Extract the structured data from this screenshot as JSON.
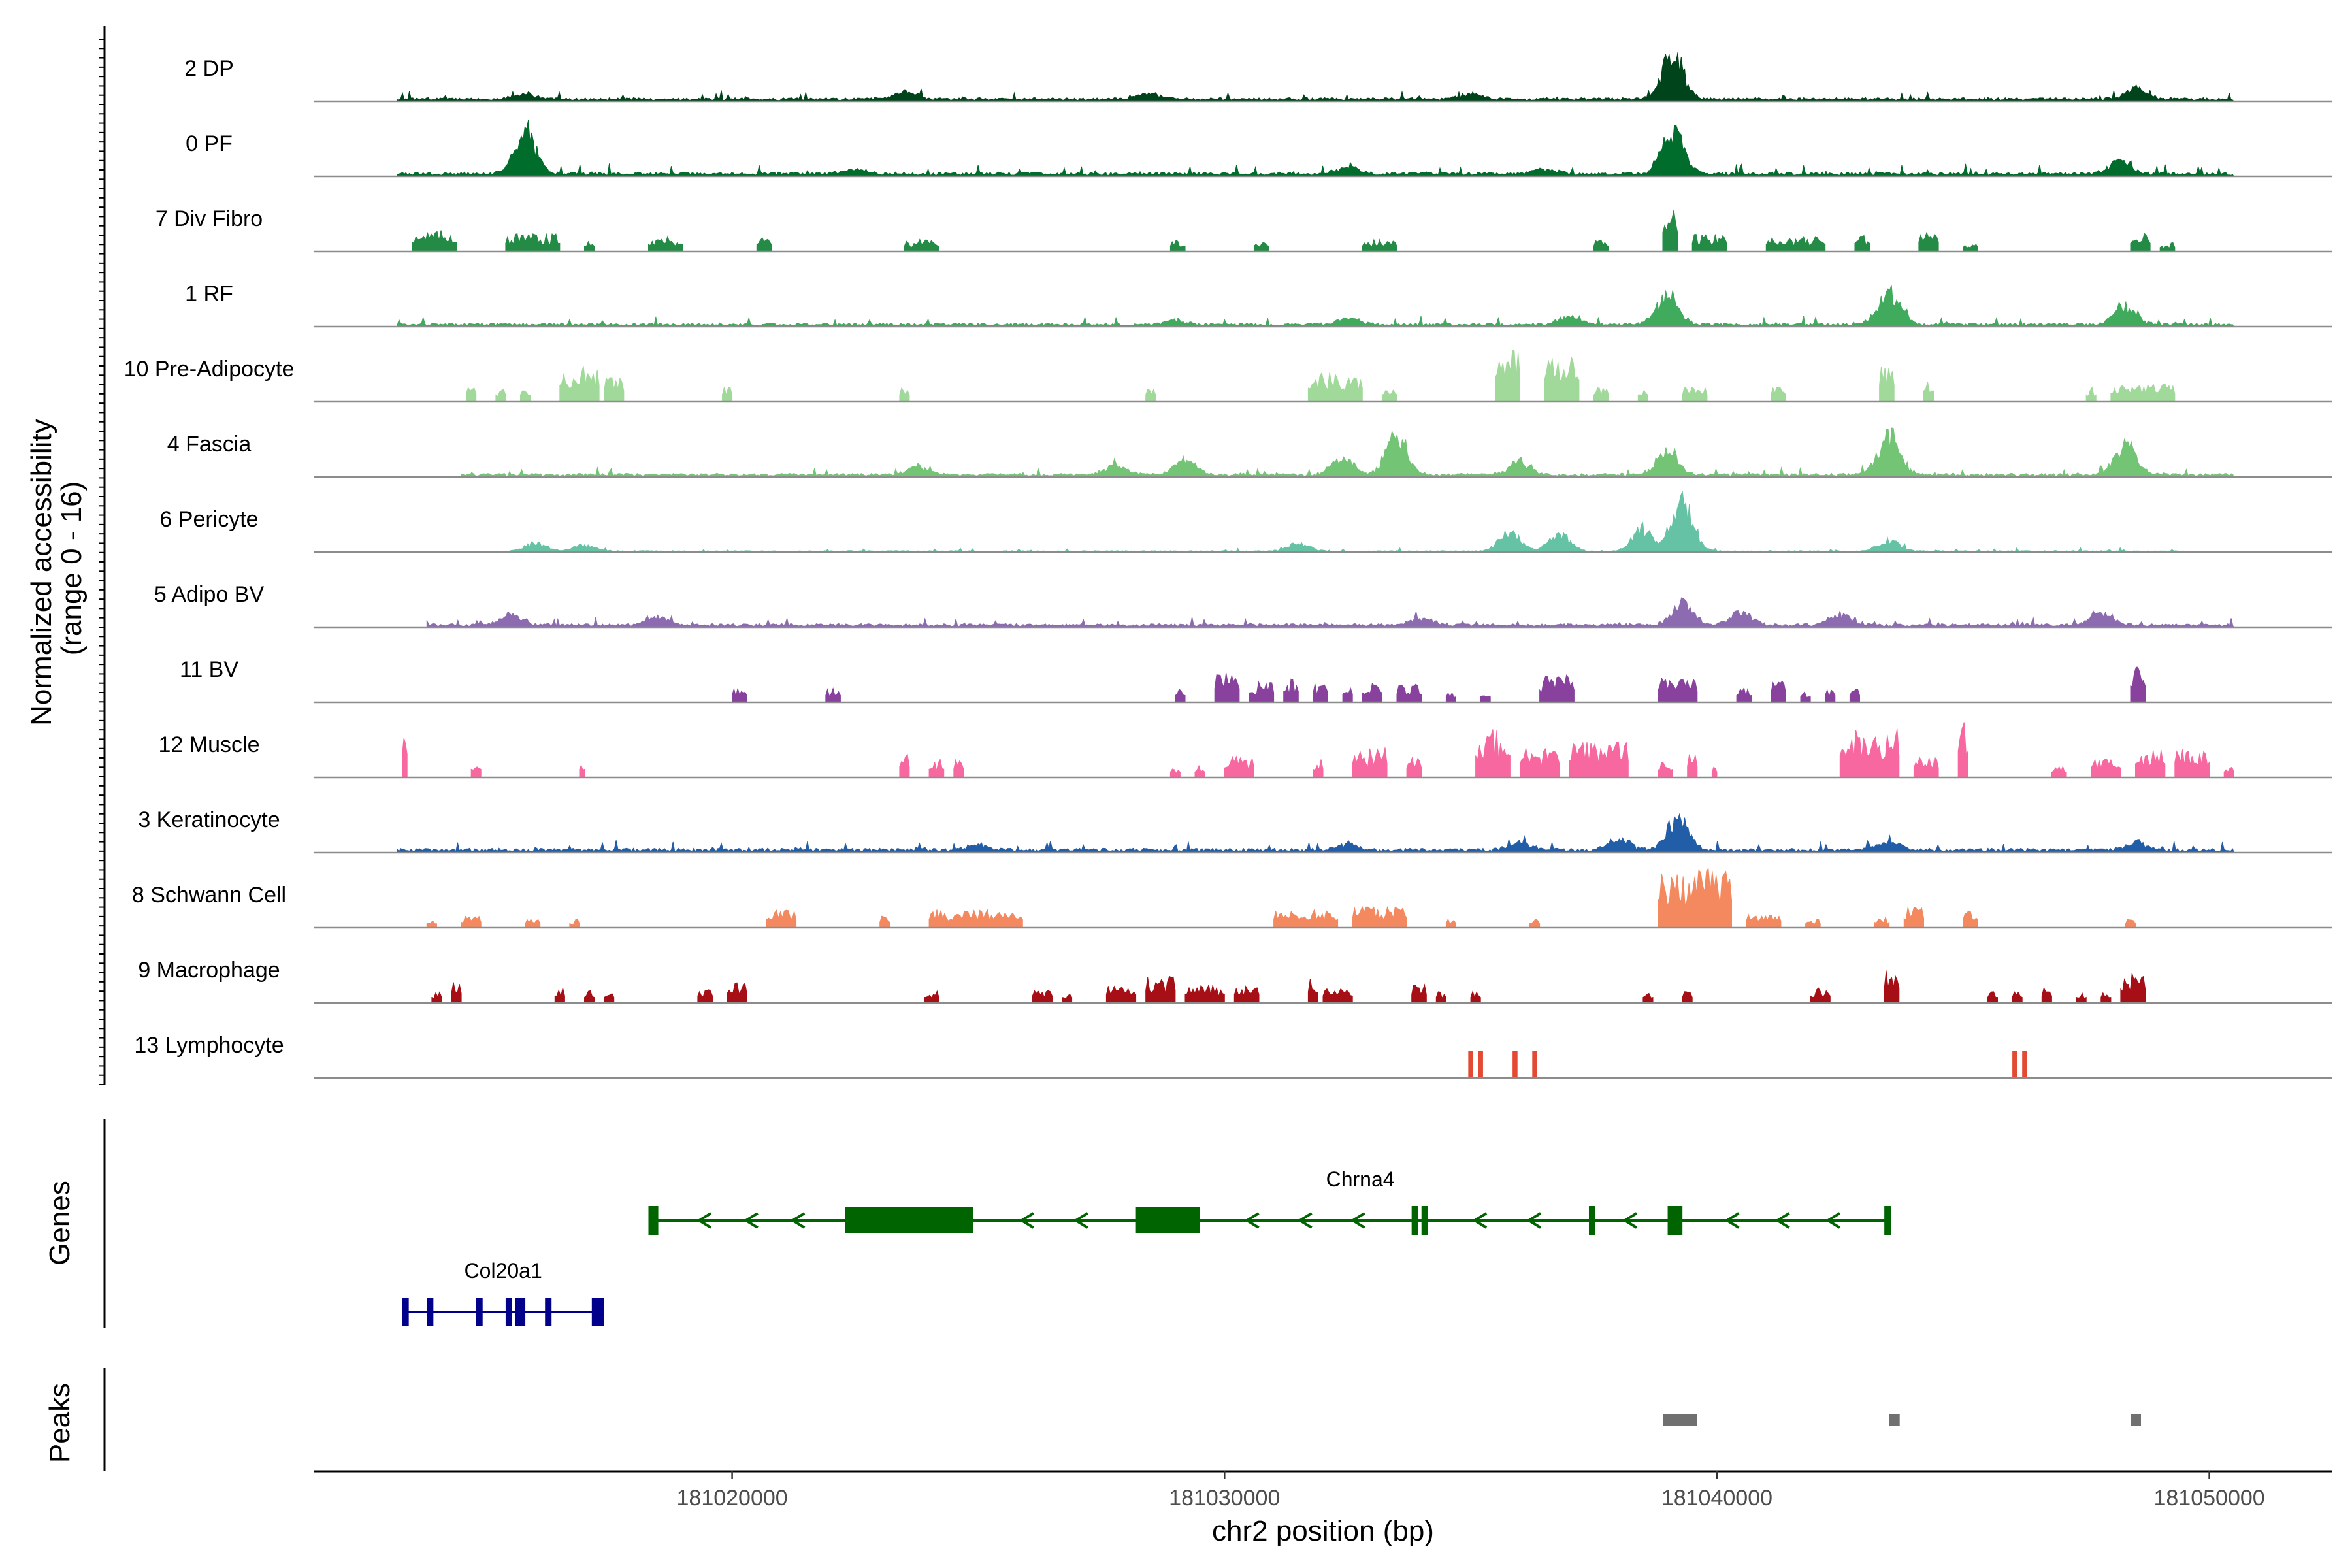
{
  "chart_data": {
    "type": "area",
    "title": "",
    "ylabel_line1": "Normalized accessibility",
    "ylabel_line2": "(range 0 - 16)",
    "xlabel": "chr2 position (bp)",
    "xlim": [
      181011500,
      181052500
    ],
    "ylim": [
      0,
      16
    ],
    "x_ticks": [
      181020000,
      181030000,
      181040000,
      181050000
    ],
    "x_tick_labels": [
      "181020000",
      "181030000",
      "181040000",
      "181050000"
    ],
    "tracks": [
      {
        "name": "2 DP",
        "color": "#00441b",
        "style": "continuous",
        "range": [
          181013200,
          181050500
        ],
        "base": 0.05,
        "peaks": [
          [
            181039100,
            0.85
          ],
          [
            181048500,
            0.2
          ],
          [
            181023500,
            0.15
          ],
          [
            181015800,
            0.1
          ],
          [
            181035000,
            0.1
          ],
          [
            181028500,
            0.1
          ]
        ]
      },
      {
        "name": "0 PF",
        "color": "#006d2c",
        "style": "continuous",
        "range": [
          181013200,
          181050500
        ],
        "base": 0.06,
        "peaks": [
          [
            181015800,
            0.75
          ],
          [
            181039100,
            0.8
          ],
          [
            181048200,
            0.25
          ],
          [
            181032500,
            0.15
          ],
          [
            181022500,
            0.1
          ],
          [
            181036500,
            0.1
          ]
        ]
      },
      {
        "name": "7 Div Fibro",
        "color": "#238b45",
        "style": "sparse",
        "segments": [
          [
            181013500,
            181014400,
            0.35
          ],
          [
            181015400,
            181016500,
            0.3
          ],
          [
            181017000,
            181017200,
            0.2
          ],
          [
            181018300,
            181019000,
            0.25
          ],
          [
            181020500,
            181020800,
            0.25
          ],
          [
            181023500,
            181024200,
            0.2
          ],
          [
            181028900,
            181029200,
            0.2
          ],
          [
            181030600,
            181030900,
            0.2
          ],
          [
            181032800,
            181033500,
            0.2
          ],
          [
            181037500,
            181037800,
            0.2
          ],
          [
            181038900,
            181039200,
            0.7
          ],
          [
            181039500,
            181040200,
            0.3
          ],
          [
            181041000,
            181042200,
            0.25
          ],
          [
            181042800,
            181043100,
            0.3
          ],
          [
            181044100,
            181044500,
            0.35
          ],
          [
            181045000,
            181045300,
            0.15
          ],
          [
            181048400,
            181048800,
            0.3
          ],
          [
            181049000,
            181049300,
            0.15
          ]
        ]
      },
      {
        "name": "1 RF",
        "color": "#41ab5d",
        "style": "continuous",
        "range": [
          181013200,
          181050500
        ],
        "base": 0.05,
        "peaks": [
          [
            181039000,
            0.55
          ],
          [
            181043500,
            0.65
          ],
          [
            181048300,
            0.35
          ],
          [
            181032500,
            0.12
          ],
          [
            181037000,
            0.15
          ],
          [
            181029000,
            0.08
          ]
        ]
      },
      {
        "name": "10 Pre-Adipocyte",
        "color": "#a1d99b",
        "style": "sparse",
        "segments": [
          [
            181014600,
            181014800,
            0.3
          ],
          [
            181015200,
            181015400,
            0.25
          ],
          [
            181015700,
            181015900,
            0.25
          ],
          [
            181016500,
            181017300,
            0.6
          ],
          [
            181017400,
            181017800,
            0.4
          ],
          [
            181019800,
            181020000,
            0.25
          ],
          [
            181023400,
            181023600,
            0.25
          ],
          [
            181028400,
            181028600,
            0.25
          ],
          [
            181031700,
            181032800,
            0.5
          ],
          [
            181033200,
            181033500,
            0.25
          ],
          [
            181035500,
            181036000,
            0.9
          ],
          [
            181036500,
            181037200,
            0.8
          ],
          [
            181037500,
            181037800,
            0.25
          ],
          [
            181038400,
            181038600,
            0.25
          ],
          [
            181039300,
            181039800,
            0.25
          ],
          [
            181041100,
            181041400,
            0.25
          ],
          [
            181043300,
            181043600,
            0.6
          ],
          [
            181044200,
            181044400,
            0.4
          ],
          [
            181047500,
            181047700,
            0.25
          ],
          [
            181048000,
            181049300,
            0.3
          ]
        ]
      },
      {
        "name": "4 Fascia",
        "color": "#74c476",
        "style": "continuous",
        "range": [
          181014500,
          181050500
        ],
        "base": 0.05,
        "peaks": [
          [
            181033500,
            0.75
          ],
          [
            181032400,
            0.35
          ],
          [
            181039000,
            0.4
          ],
          [
            181043500,
            0.75
          ],
          [
            181048300,
            0.6
          ],
          [
            181029200,
            0.3
          ],
          [
            181027800,
            0.2
          ],
          [
            181023800,
            0.15
          ],
          [
            181036000,
            0.25
          ]
        ]
      },
      {
        "name": "6 Pericyte",
        "color": "#66c2a4",
        "style": "continuous",
        "range": [
          181015500,
          181049500
        ],
        "base": 0.02,
        "peaks": [
          [
            181039300,
            0.95
          ],
          [
            181035800,
            0.35
          ],
          [
            181036800,
            0.3
          ],
          [
            181038500,
            0.4
          ],
          [
            181043500,
            0.2
          ],
          [
            181016000,
            0.15
          ],
          [
            181017000,
            0.12
          ],
          [
            181031500,
            0.15
          ]
        ]
      },
      {
        "name": "5 Adipo BV",
        "color": "#8c6bb1",
        "style": "continuous",
        "range": [
          181013800,
          181050500
        ],
        "base": 0.05,
        "peaks": [
          [
            181039300,
            0.4
          ],
          [
            181040500,
            0.25
          ],
          [
            181042500,
            0.2
          ],
          [
            181047800,
            0.25
          ],
          [
            181034000,
            0.15
          ],
          [
            181018500,
            0.15
          ],
          [
            181015500,
            0.2
          ]
        ]
      },
      {
        "name": "11 BV",
        "color": "#88419d",
        "style": "sparse",
        "segments": [
          [
            181020000,
            181020300,
            0.25
          ],
          [
            181021900,
            181022200,
            0.25
          ],
          [
            181029000,
            181029200,
            0.25
          ],
          [
            181029800,
            181030300,
            0.5
          ],
          [
            181030500,
            181031000,
            0.35
          ],
          [
            181031200,
            181031500,
            0.4
          ],
          [
            181031800,
            181032100,
            0.35
          ],
          [
            181032400,
            181032600,
            0.3
          ],
          [
            181032800,
            181033200,
            0.35
          ],
          [
            181033500,
            181034000,
            0.3
          ],
          [
            181034500,
            181034700,
            0.2
          ],
          [
            181035200,
            181035400,
            0.2
          ],
          [
            181036400,
            181037100,
            0.45
          ],
          [
            181038800,
            181039600,
            0.4
          ],
          [
            181040400,
            181040700,
            0.25
          ],
          [
            181041100,
            181041400,
            0.35
          ],
          [
            181041700,
            181041900,
            0.2
          ],
          [
            181042200,
            181042400,
            0.25
          ],
          [
            181042700,
            181042900,
            0.25
          ],
          [
            181048400,
            181048700,
            0.6
          ]
        ]
      },
      {
        "name": "12 Muscle",
        "color": "#f768a1",
        "style": "sparse",
        "segments": [
          [
            181013300,
            181013400,
            0.85
          ],
          [
            181014700,
            181014900,
            0.3
          ],
          [
            181016900,
            181017000,
            0.3
          ],
          [
            181023400,
            181023600,
            0.4
          ],
          [
            181024000,
            181024300,
            0.3
          ],
          [
            181024500,
            181024700,
            0.3
          ],
          [
            181028900,
            181029100,
            0.2
          ],
          [
            181029400,
            181029600,
            0.2
          ],
          [
            181030000,
            181030600,
            0.35
          ],
          [
            181031800,
            181032000,
            0.3
          ],
          [
            181032600,
            181033300,
            0.5
          ],
          [
            181033700,
            181034000,
            0.35
          ],
          [
            181035100,
            181035800,
            0.8
          ],
          [
            181036000,
            181036800,
            0.5
          ],
          [
            181037000,
            181038200,
            0.6
          ],
          [
            181038800,
            181039100,
            0.3
          ],
          [
            181039400,
            181039600,
            0.4
          ],
          [
            181039900,
            181040000,
            0.2
          ],
          [
            181042500,
            181043700,
            0.8
          ],
          [
            181044000,
            181044500,
            0.35
          ],
          [
            181044900,
            181045100,
            0.95
          ],
          [
            181046800,
            181047100,
            0.2
          ],
          [
            181047600,
            181048200,
            0.35
          ],
          [
            181048500,
            181049100,
            0.5
          ],
          [
            181049300,
            181050000,
            0.55
          ],
          [
            181050300,
            181050500,
            0.2
          ]
        ]
      },
      {
        "name": "3 Keratinocyte",
        "color": "#225ea8",
        "style": "continuous",
        "range": [
          181013200,
          181050500
        ],
        "base": 0.06,
        "peaks": [
          [
            181039200,
            0.6
          ],
          [
            181038000,
            0.2
          ],
          [
            181036000,
            0.15
          ],
          [
            181043500,
            0.15
          ],
          [
            181032500,
            0.12
          ],
          [
            181025000,
            0.1
          ],
          [
            181048500,
            0.15
          ]
        ]
      },
      {
        "name": "8 Schwann Cell",
        "color": "#f4895f",
        "style": "sparse",
        "segments": [
          [
            181013800,
            181014000,
            0.15
          ],
          [
            181014500,
            181014900,
            0.2
          ],
          [
            181015800,
            181016100,
            0.15
          ],
          [
            181016700,
            181016900,
            0.15
          ],
          [
            181020700,
            181021300,
            0.3
          ],
          [
            181023000,
            181023200,
            0.2
          ],
          [
            181024000,
            181025900,
            0.3
          ],
          [
            181031000,
            181032300,
            0.3
          ],
          [
            181032600,
            181033700,
            0.35
          ],
          [
            181034500,
            181034700,
            0.15
          ],
          [
            181036200,
            181036400,
            0.15
          ],
          [
            181038800,
            181040300,
            1.0
          ],
          [
            181040600,
            181041300,
            0.25
          ],
          [
            181041800,
            181042100,
            0.15
          ],
          [
            181043200,
            181043500,
            0.2
          ],
          [
            181043800,
            181044200,
            0.35
          ],
          [
            181045000,
            181045300,
            0.3
          ],
          [
            181048300,
            181048500,
            0.15
          ]
        ]
      },
      {
        "name": "9 Macrophage",
        "color": "#a50f15",
        "style": "sparse",
        "segments": [
          [
            181013900,
            181014100,
            0.2
          ],
          [
            181014300,
            181014500,
            0.35
          ],
          [
            181016400,
            181016600,
            0.25
          ],
          [
            181017000,
            181017200,
            0.2
          ],
          [
            181017400,
            181017600,
            0.2
          ],
          [
            181019300,
            181019600,
            0.25
          ],
          [
            181019900,
            181020300,
            0.35
          ],
          [
            181023900,
            181024200,
            0.2
          ],
          [
            181026100,
            181026500,
            0.25
          ],
          [
            181026700,
            181026900,
            0.2
          ],
          [
            181027600,
            181028200,
            0.3
          ],
          [
            181028400,
            181029000,
            0.45
          ],
          [
            181029200,
            181030000,
            0.3
          ],
          [
            181030200,
            181030700,
            0.3
          ],
          [
            181031700,
            181031900,
            0.4
          ],
          [
            181032000,
            181032600,
            0.25
          ],
          [
            181033800,
            181034100,
            0.3
          ],
          [
            181034300,
            181034500,
            0.2
          ],
          [
            181035000,
            181035200,
            0.2
          ],
          [
            181038500,
            181038700,
            0.2
          ],
          [
            181039300,
            181039500,
            0.2
          ],
          [
            181041900,
            181042300,
            0.25
          ],
          [
            181043400,
            181043700,
            0.55
          ],
          [
            181045500,
            181045700,
            0.2
          ],
          [
            181046000,
            181046200,
            0.2
          ],
          [
            181046600,
            181046800,
            0.25
          ],
          [
            181047300,
            181047500,
            0.2
          ],
          [
            181047800,
            181048000,
            0.2
          ],
          [
            181048200,
            181048700,
            0.5
          ]
        ]
      },
      {
        "name": "13 Lymphocyte",
        "color": "#e34a33",
        "style": "bars",
        "segments": [
          [
            181034950,
            181035050,
            0.45
          ],
          [
            181035150,
            181035250,
            0.45
          ],
          [
            181035850,
            181035950,
            0.45
          ],
          [
            181036250,
            181036350,
            0.45
          ],
          [
            181046000,
            181046100,
            0.45
          ],
          [
            181046200,
            181046300,
            0.45
          ]
        ]
      }
    ],
    "genes_label": "Genes",
    "genes": [
      {
        "name": "Chrna4",
        "color": "#006400",
        "strand": "-",
        "start": 181018300,
        "end": 181043500,
        "row": 1,
        "exons": [
          [
            181018300,
            181018500
          ],
          [
            181022300,
            181024900
          ],
          [
            181028200,
            181029500
          ],
          [
            181033800,
            181033900
          ],
          [
            181034000,
            181034100
          ],
          [
            181037400,
            181037500
          ],
          [
            181039000,
            181039300
          ],
          [
            181043400,
            181043500
          ]
        ]
      },
      {
        "name": "Col20a1",
        "color": "#00008b",
        "strand": "+",
        "start": 181013300,
        "end": 181017400,
        "row": 2,
        "exons": [
          [
            181013300,
            181013350
          ],
          [
            181013800,
            181013850
          ],
          [
            181014800,
            181014850
          ],
          [
            181015400,
            181015500
          ],
          [
            181015600,
            181015800
          ],
          [
            181016200,
            181016250
          ],
          [
            181017150,
            181017400
          ]
        ]
      }
    ],
    "peaks_label": "Peaks",
    "peak_regions": [
      [
        181038900,
        181039600
      ],
      [
        181043500,
        181043700
      ],
      [
        181048400,
        181048600
      ]
    ],
    "peak_color": "#707070"
  }
}
